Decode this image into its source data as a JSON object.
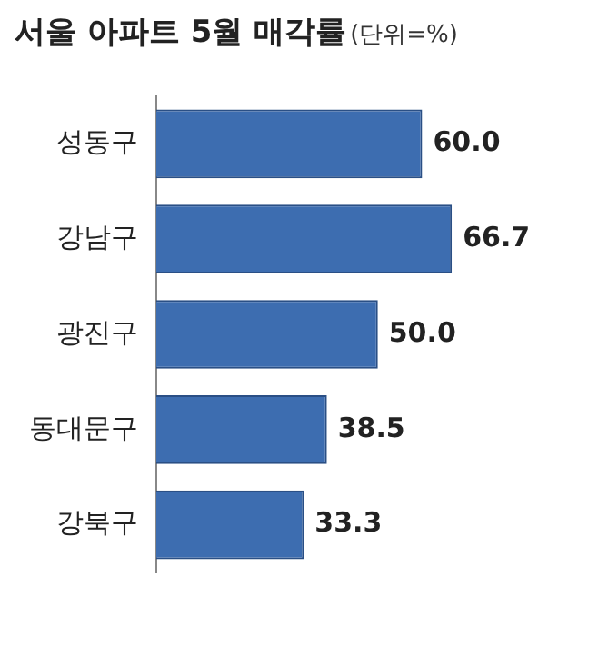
{
  "chart_data": {
    "type": "bar",
    "orientation": "horizontal",
    "title": "서울 아파트 5월 매각률",
    "subtitle": "(단위=%)",
    "categories": [
      "성동구",
      "강남구",
      "광진구",
      "동대문구",
      "강북구"
    ],
    "values": [
      60.0,
      66.7,
      50.0,
      38.5,
      33.3
    ],
    "value_labels": [
      "60.0",
      "66.7",
      "50.0",
      "38.5",
      "33.3"
    ],
    "color": "#3d6db0",
    "grid": false,
    "legend": false
  }
}
